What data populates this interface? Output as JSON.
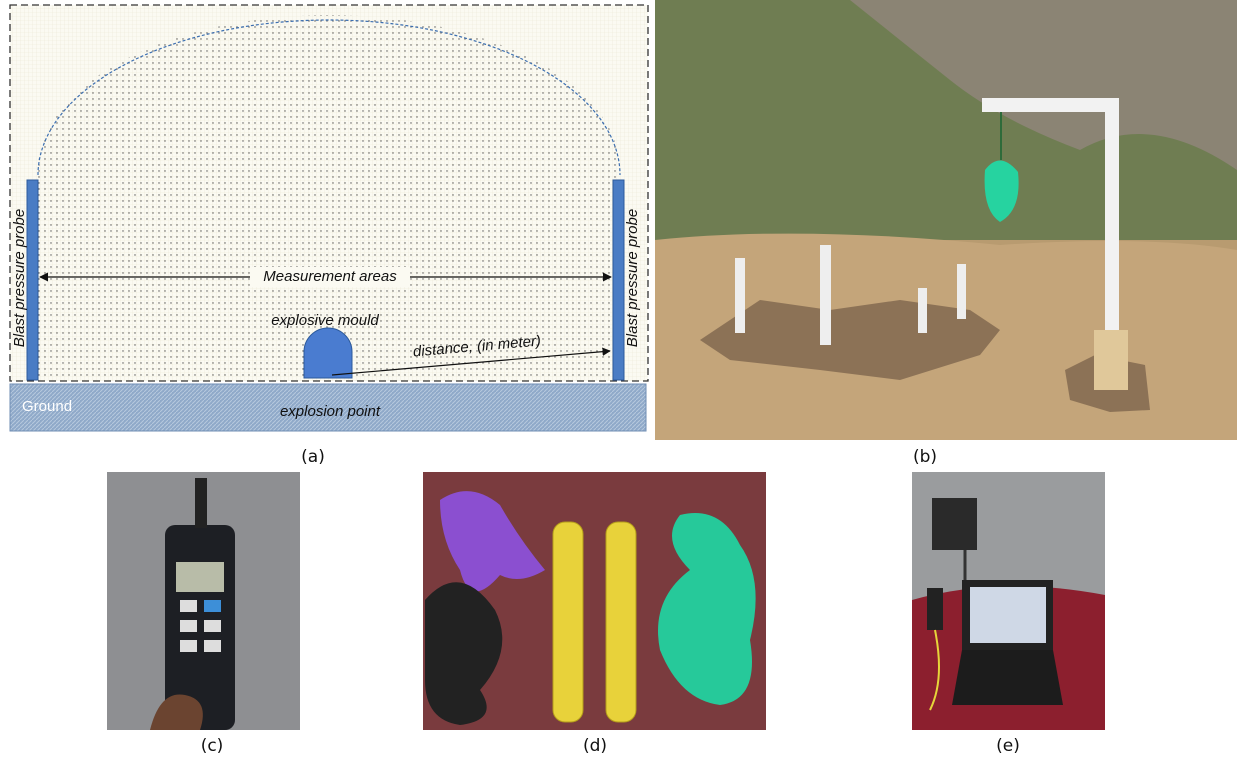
{
  "diagram": {
    "left_probe": "Blast pressure probe",
    "right_probe": "Blast pressure probe",
    "measurement": "Measurement areas",
    "mould": "explosive mould",
    "distance": "distance, (in meter)",
    "ground": "Ground",
    "explosion_point": "explosion point"
  },
  "captions": [
    "(a)",
    "(b)",
    "(c)",
    "(d)",
    "(e)"
  ]
}
